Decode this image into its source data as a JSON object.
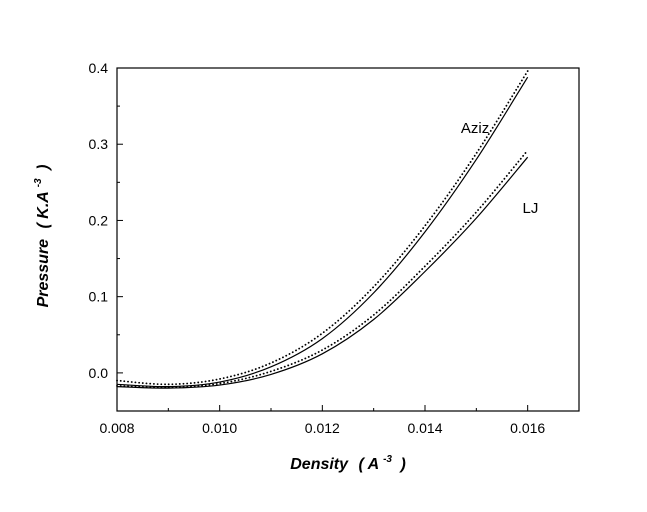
{
  "chart_data": {
    "type": "line",
    "xlabel": "Density",
    "xlabel_unit_open": "( A",
    "xlabel_unit_exp": "-3",
    "xlabel_unit_close": ")",
    "ylabel": "Pressure",
    "ylabel_unit_open": "( K.A",
    "ylabel_unit_exp": "-3",
    "ylabel_unit_close": ")",
    "xlim": [
      0.008,
      0.017
    ],
    "ylim": [
      -0.05,
      0.4
    ],
    "xticks": [
      "0.008",
      "0.010",
      "0.012",
      "0.014",
      "0.016"
    ],
    "xtick_values": [
      0.008,
      0.01,
      0.012,
      0.014,
      0.016
    ],
    "yticks": [
      "0.0",
      "0.1",
      "0.2",
      "0.3",
      "0.4"
    ],
    "ytick_values": [
      0.0,
      0.1,
      0.2,
      0.3,
      0.4
    ],
    "grid": false,
    "annotations": [
      {
        "text": "Aziz",
        "x": 0.0147,
        "y": 0.315
      },
      {
        "text": "LJ",
        "x": 0.0159,
        "y": 0.21
      }
    ],
    "series": [
      {
        "curve": "Aziz",
        "style": "solid",
        "x": [
          0.008,
          0.009,
          0.01,
          0.011,
          0.012,
          0.013,
          0.014,
          0.015,
          0.016
        ],
        "y": [
          -0.015,
          -0.018,
          -0.012,
          0.008,
          0.045,
          0.105,
          0.185,
          0.28,
          0.388
        ]
      },
      {
        "curve": "Aziz",
        "style": "dotted",
        "x": [
          0.008,
          0.009,
          0.01,
          0.011,
          0.012,
          0.013,
          0.014,
          0.015,
          0.016
        ],
        "y": [
          -0.01,
          -0.015,
          -0.008,
          0.013,
          0.052,
          0.113,
          0.193,
          0.288,
          0.396
        ]
      },
      {
        "curve": "LJ",
        "style": "solid",
        "x": [
          0.008,
          0.009,
          0.01,
          0.011,
          0.012,
          0.013,
          0.014,
          0.015,
          0.016
        ],
        "y": [
          -0.018,
          -0.02,
          -0.016,
          -0.002,
          0.025,
          0.07,
          0.133,
          0.203,
          0.283
        ]
      },
      {
        "curve": "LJ",
        "style": "dotted",
        "x": [
          0.008,
          0.009,
          0.01,
          0.011,
          0.012,
          0.013,
          0.014,
          0.015,
          0.016
        ],
        "y": [
          -0.017,
          -0.019,
          -0.014,
          0.002,
          0.03,
          0.076,
          0.14,
          0.211,
          0.292
        ]
      }
    ]
  }
}
